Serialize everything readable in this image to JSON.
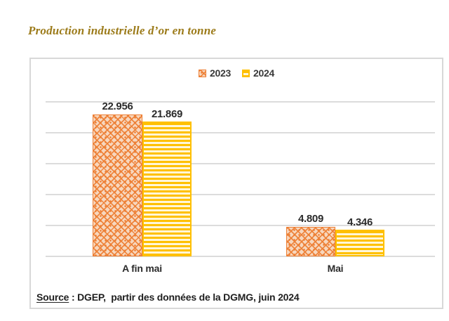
{
  "page": {
    "title": "Production industrielle d’or en tonne"
  },
  "chart_data": {
    "type": "bar",
    "title": "Production industrielle d’or en tonne",
    "categories": [
      "A fin mai",
      "Mai"
    ],
    "series": [
      {
        "name": "2023",
        "values": [
          22.956,
          4.809
        ],
        "labels": [
          "22.956",
          "4.809"
        ],
        "color": "#ED7D31",
        "pattern": "dotted-diamond"
      },
      {
        "name": "2024",
        "values": [
          21.869,
          4.346
        ],
        "labels": [
          "21.869",
          "4.346"
        ],
        "color": "#FFC000",
        "pattern": "horizontal-stripes"
      }
    ],
    "xlabel": "",
    "ylabel": "",
    "ylim": [
      0,
      25
    ],
    "gridline_step": 5,
    "grid": true,
    "legend_position": "top-center",
    "colors": {
      "gridline": "#DCDCDC",
      "box_border": "#D8D8D8",
      "title": "#9C7B1A",
      "text": "#2B2B2B"
    }
  },
  "source": {
    "label": "Source",
    "separator": " : ",
    "text": "DGEP,  partir des données de la DGMG, juin 2024"
  }
}
